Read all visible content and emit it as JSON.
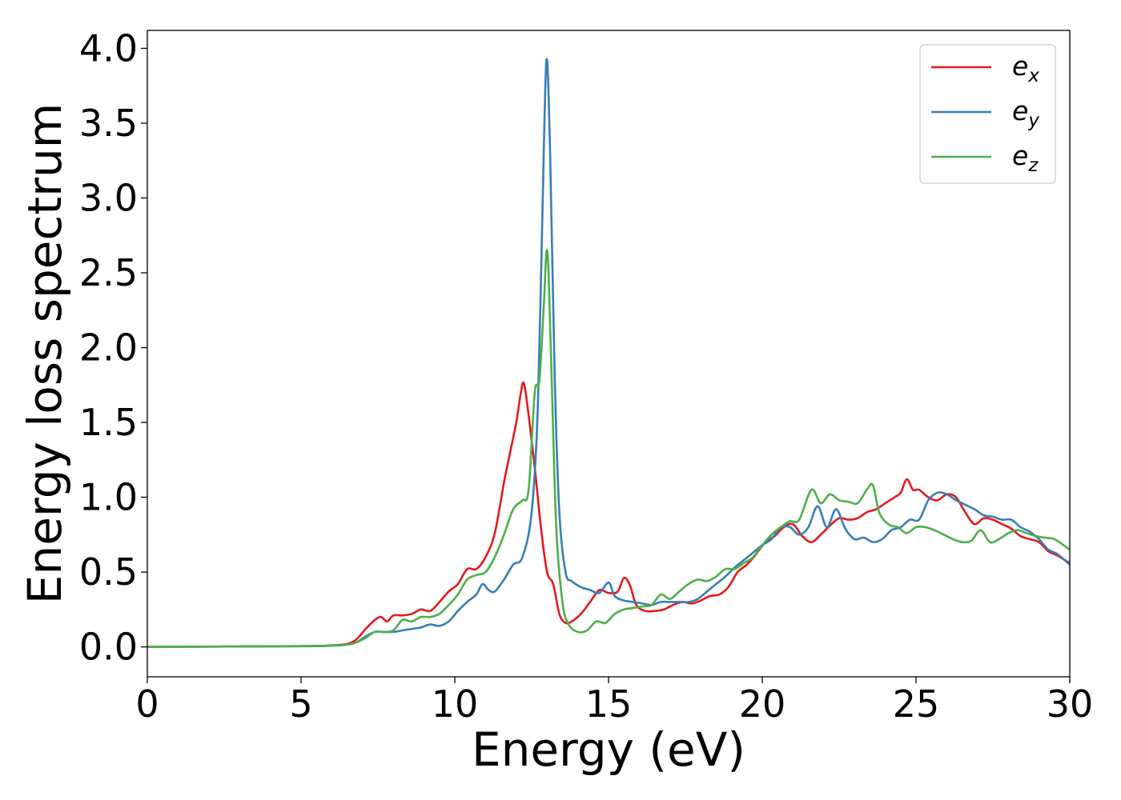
{
  "chart_data": {
    "type": "line",
    "xlabel": "Energy (eV)",
    "ylabel": "Energy loss spectrum",
    "xlim": [
      0,
      30
    ],
    "ylim": [
      -0.2,
      4.12
    ],
    "xticks": [
      0,
      5,
      10,
      15,
      20,
      25,
      30
    ],
    "xtick_labels": [
      "0",
      "5",
      "10",
      "15",
      "20",
      "25",
      "30"
    ],
    "yticks": [
      0.0,
      0.5,
      1.0,
      1.5,
      2.0,
      2.5,
      3.0,
      3.5,
      4.0
    ],
    "ytick_labels": [
      "0.0",
      "0.5",
      "1.0",
      "1.5",
      "2.0",
      "2.5",
      "3.0",
      "3.5",
      "4.0"
    ],
    "grid": false,
    "legend_position": "top-right",
    "series": [
      {
        "name": "e_x",
        "label_base": "e",
        "label_sub": "x",
        "color": "#e41a1c",
        "x": [
          0,
          5,
          6,
          6.5,
          6.8,
          7.1,
          7.4,
          7.6,
          7.8,
          8.0,
          8.3,
          8.6,
          8.9,
          9.2,
          9.5,
          9.8,
          10.1,
          10.4,
          10.7,
          11.0,
          11.3,
          11.6,
          11.8,
          12.0,
          12.15,
          12.25,
          12.4,
          12.6,
          12.8,
          13.0,
          13.2,
          13.4,
          13.6,
          13.8,
          14.1,
          14.4,
          14.7,
          15.0,
          15.3,
          15.5,
          15.7,
          15.9,
          16.2,
          16.5,
          16.8,
          17.1,
          17.4,
          17.7,
          18.0,
          18.3,
          18.6,
          18.9,
          19.2,
          19.5,
          19.8,
          20.1,
          20.4,
          20.7,
          21.0,
          21.3,
          21.6,
          21.9,
          22.2,
          22.5,
          22.8,
          23.1,
          23.4,
          23.7,
          24.0,
          24.3,
          24.5,
          24.7,
          24.9,
          25.1,
          25.4,
          25.7,
          26.0,
          26.3,
          26.6,
          26.9,
          27.2,
          27.5,
          27.8,
          28.1,
          28.4,
          28.7,
          29.0,
          29.3,
          29.6,
          30.0
        ],
        "y": [
          0.0,
          0.005,
          0.01,
          0.02,
          0.05,
          0.12,
          0.18,
          0.2,
          0.17,
          0.21,
          0.21,
          0.22,
          0.25,
          0.24,
          0.3,
          0.37,
          0.42,
          0.52,
          0.52,
          0.6,
          0.76,
          1.1,
          1.3,
          1.5,
          1.7,
          1.76,
          1.55,
          1.2,
          0.8,
          0.5,
          0.42,
          0.22,
          0.16,
          0.17,
          0.22,
          0.3,
          0.38,
          0.36,
          0.37,
          0.46,
          0.41,
          0.28,
          0.24,
          0.24,
          0.25,
          0.28,
          0.3,
          0.29,
          0.31,
          0.34,
          0.35,
          0.4,
          0.5,
          0.55,
          0.62,
          0.7,
          0.74,
          0.8,
          0.82,
          0.74,
          0.7,
          0.75,
          0.81,
          0.86,
          0.85,
          0.86,
          0.9,
          0.92,
          0.96,
          1.0,
          1.03,
          1.12,
          1.05,
          1.05,
          1.0,
          0.98,
          1.02,
          1.0,
          0.9,
          0.82,
          0.86,
          0.85,
          0.82,
          0.79,
          0.74,
          0.72,
          0.7,
          0.64,
          0.61,
          0.56
        ]
      },
      {
        "name": "e_y",
        "label_base": "e",
        "label_sub": "y",
        "color": "#377eb8",
        "x": [
          0,
          5,
          6,
          6.5,
          6.8,
          7.1,
          7.4,
          7.7,
          8.0,
          8.3,
          8.6,
          8.9,
          9.2,
          9.5,
          9.8,
          10.1,
          10.4,
          10.7,
          10.9,
          11.1,
          11.3,
          11.6,
          11.9,
          12.2,
          12.5,
          12.7,
          12.85,
          12.98,
          13.1,
          13.25,
          13.4,
          13.6,
          13.8,
          14.1,
          14.4,
          14.7,
          15.0,
          15.2,
          15.5,
          15.8,
          16.1,
          16.4,
          16.7,
          17.0,
          17.3,
          17.6,
          17.9,
          18.2,
          18.5,
          18.8,
          19.1,
          19.4,
          19.7,
          20.0,
          20.3,
          20.6,
          20.9,
          21.2,
          21.5,
          21.8,
          22.1,
          22.4,
          22.7,
          23.0,
          23.3,
          23.6,
          23.9,
          24.2,
          24.5,
          24.8,
          25.1,
          25.4,
          25.7,
          26.0,
          26.3,
          26.6,
          26.9,
          27.2,
          27.5,
          27.8,
          28.1,
          28.4,
          28.7,
          29.0,
          29.3,
          29.6,
          30.0
        ],
        "y": [
          0.0,
          0.005,
          0.01,
          0.015,
          0.03,
          0.07,
          0.1,
          0.1,
          0.1,
          0.11,
          0.12,
          0.13,
          0.15,
          0.14,
          0.17,
          0.24,
          0.3,
          0.35,
          0.42,
          0.38,
          0.37,
          0.45,
          0.55,
          0.6,
          0.9,
          1.6,
          2.9,
          3.92,
          3.3,
          1.8,
          0.9,
          0.5,
          0.44,
          0.4,
          0.38,
          0.36,
          0.43,
          0.34,
          0.31,
          0.3,
          0.29,
          0.28,
          0.3,
          0.3,
          0.3,
          0.3,
          0.32,
          0.37,
          0.42,
          0.47,
          0.53,
          0.58,
          0.63,
          0.68,
          0.72,
          0.8,
          0.8,
          0.75,
          0.8,
          0.94,
          0.8,
          0.92,
          0.79,
          0.72,
          0.73,
          0.7,
          0.72,
          0.78,
          0.8,
          0.85,
          0.85,
          0.98,
          1.03,
          1.02,
          0.98,
          0.95,
          0.92,
          0.88,
          0.87,
          0.85,
          0.85,
          0.8,
          0.77,
          0.72,
          0.65,
          0.62,
          0.55
        ]
      },
      {
        "name": "e_z",
        "label_base": "e",
        "label_sub": "z",
        "color": "#4daf4a",
        "x": [
          0,
          5,
          6,
          6.5,
          6.8,
          7.1,
          7.4,
          7.7,
          8.0,
          8.3,
          8.6,
          8.9,
          9.2,
          9.5,
          9.8,
          10.1,
          10.4,
          10.7,
          11.0,
          11.3,
          11.6,
          11.9,
          12.2,
          12.4,
          12.6,
          12.75,
          12.9,
          12.98,
          13.05,
          13.15,
          13.3,
          13.5,
          13.7,
          14.0,
          14.3,
          14.6,
          14.9,
          15.2,
          15.5,
          15.8,
          16.1,
          16.4,
          16.7,
          17.0,
          17.3,
          17.6,
          17.9,
          18.2,
          18.5,
          18.8,
          19.1,
          19.4,
          19.7,
          20.0,
          20.3,
          20.6,
          20.9,
          21.2,
          21.6,
          21.9,
          22.2,
          22.5,
          22.8,
          23.1,
          23.4,
          23.6,
          23.8,
          24.1,
          24.4,
          24.7,
          25.0,
          25.3,
          25.6,
          25.9,
          26.2,
          26.5,
          26.8,
          27.1,
          27.4,
          27.7,
          28.0,
          28.3,
          28.6,
          28.9,
          29.2,
          29.5,
          29.8,
          30.0
        ],
        "y": [
          0.0,
          0.004,
          0.008,
          0.015,
          0.03,
          0.06,
          0.1,
          0.1,
          0.11,
          0.18,
          0.17,
          0.2,
          0.2,
          0.22,
          0.28,
          0.35,
          0.45,
          0.48,
          0.5,
          0.6,
          0.75,
          0.92,
          0.98,
          1.05,
          1.7,
          1.78,
          2.3,
          2.64,
          2.5,
          1.8,
          0.8,
          0.3,
          0.15,
          0.1,
          0.11,
          0.17,
          0.16,
          0.22,
          0.25,
          0.26,
          0.27,
          0.28,
          0.35,
          0.32,
          0.37,
          0.42,
          0.45,
          0.44,
          0.47,
          0.52,
          0.52,
          0.56,
          0.6,
          0.68,
          0.75,
          0.8,
          0.84,
          0.85,
          1.05,
          0.96,
          1.02,
          0.98,
          0.97,
          0.96,
          1.05,
          1.08,
          0.9,
          0.82,
          0.8,
          0.76,
          0.8,
          0.8,
          0.78,
          0.75,
          0.72,
          0.7,
          0.71,
          0.78,
          0.7,
          0.72,
          0.76,
          0.78,
          0.76,
          0.74,
          0.73,
          0.72,
          0.68,
          0.65
        ]
      }
    ]
  }
}
